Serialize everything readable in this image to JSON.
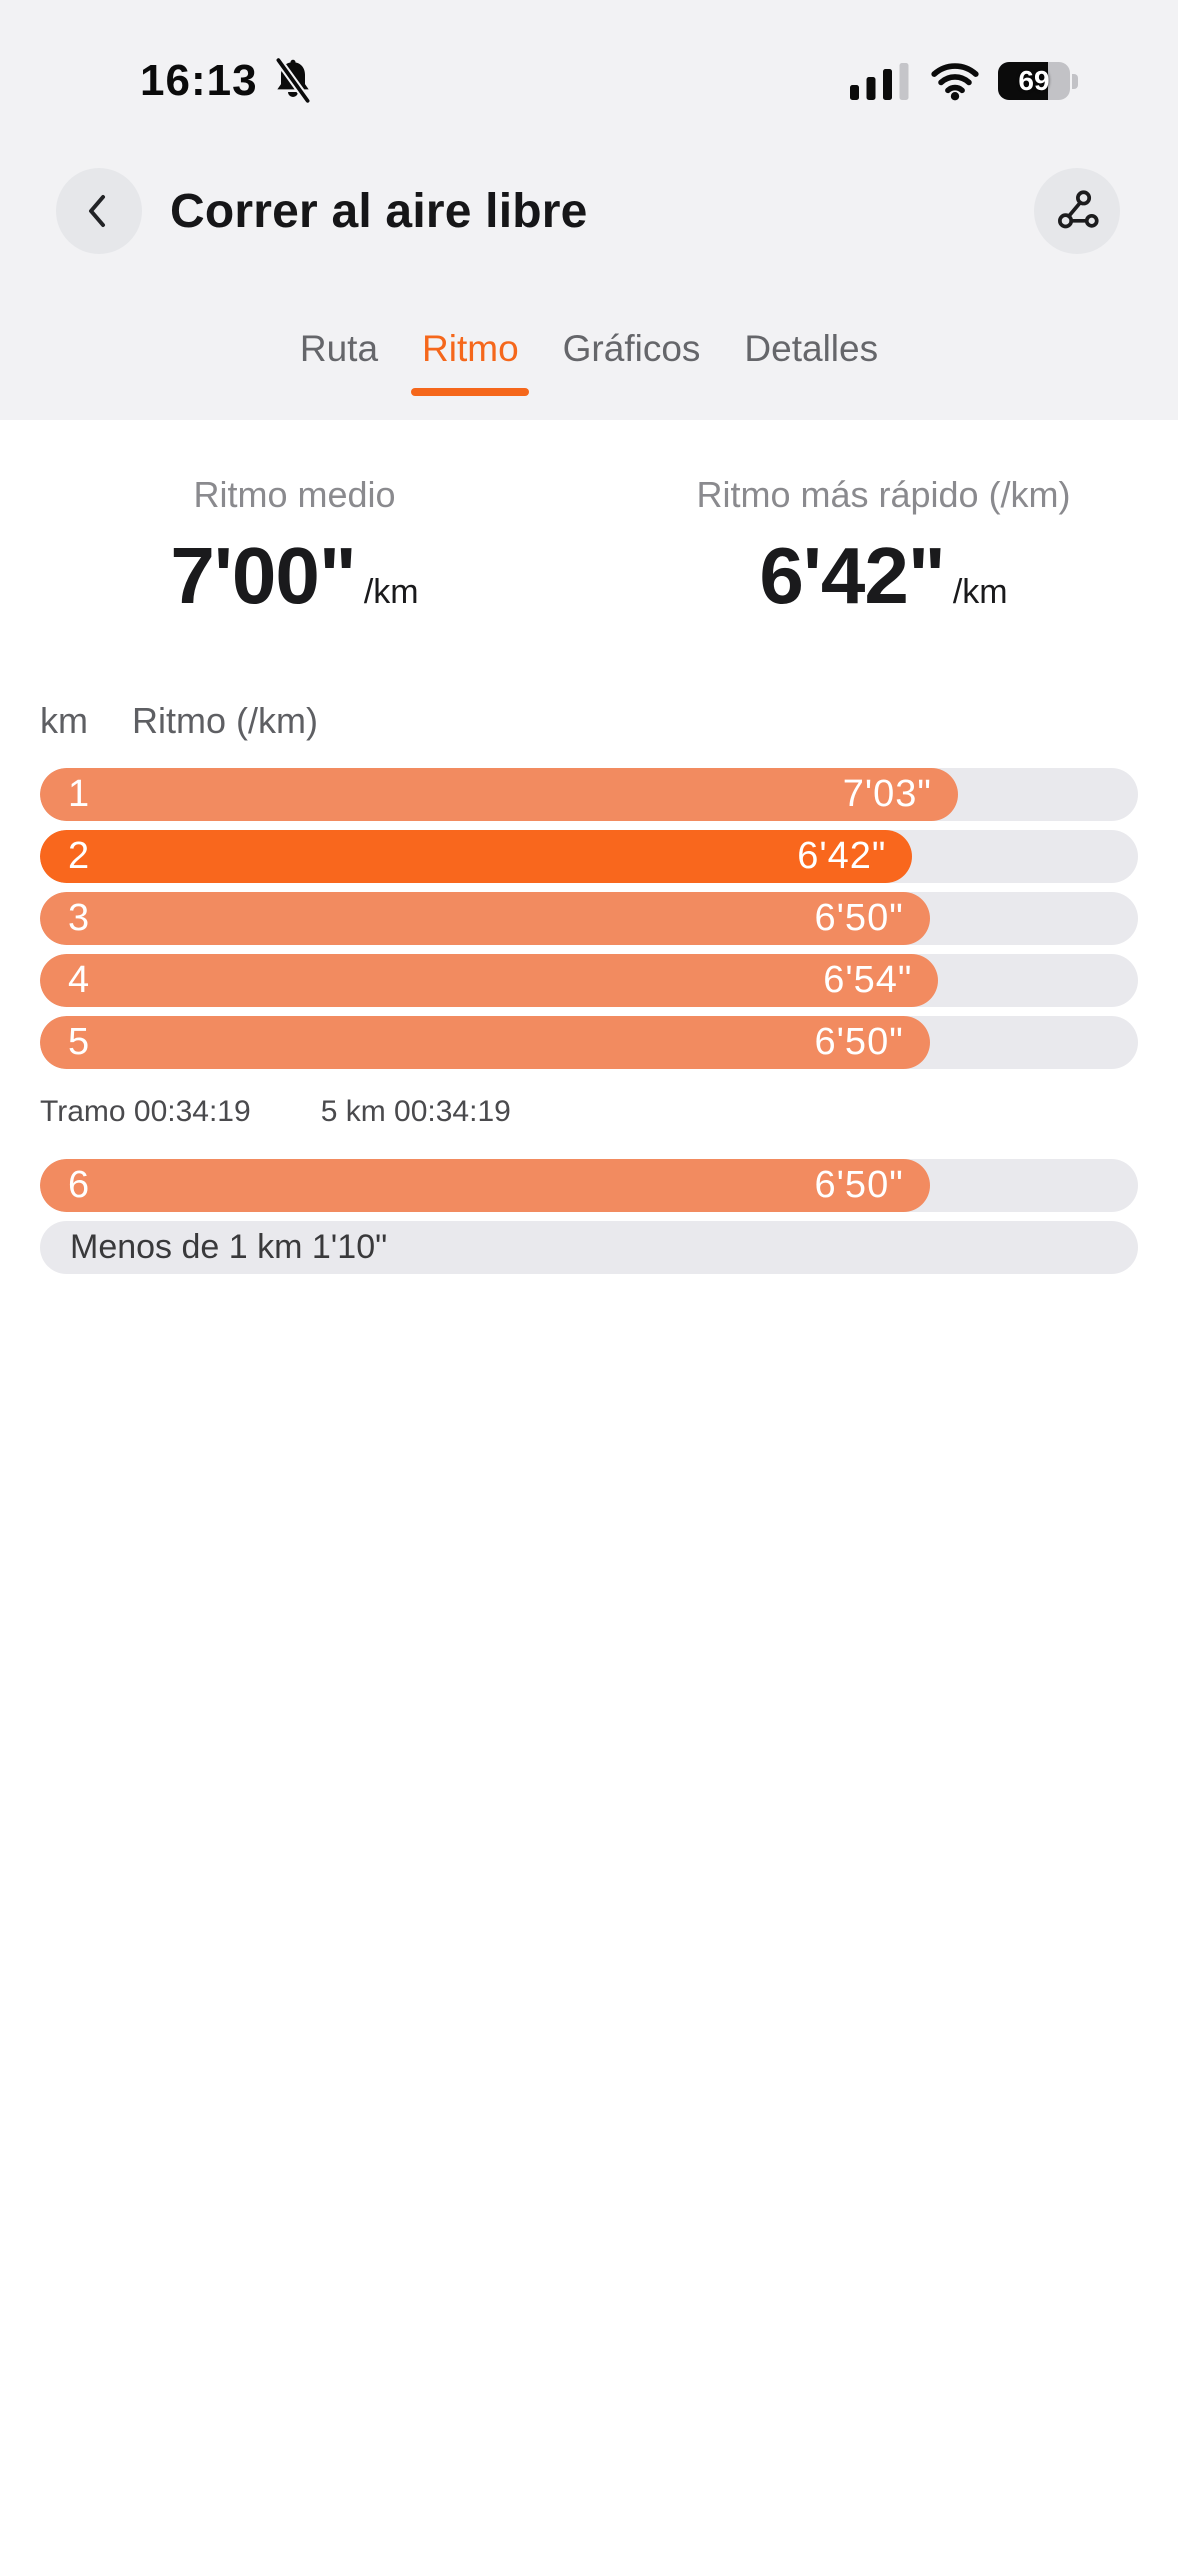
{
  "status_bar": {
    "time": "16:13",
    "battery_percent": "69"
  },
  "header": {
    "title": "Correr al aire libre"
  },
  "tabs": [
    {
      "label": "Ruta",
      "active": false
    },
    {
      "label": "Ritmo",
      "active": true
    },
    {
      "label": "Gráficos",
      "active": false
    },
    {
      "label": "Detalles",
      "active": false
    }
  ],
  "stats": [
    {
      "label": "Ritmo medio",
      "value": "7'00\"",
      "unit": "/km"
    },
    {
      "label": "Ritmo más rápido (/km)",
      "value": "6'42\"",
      "unit": "/km"
    }
  ],
  "chart_data": {
    "type": "bar",
    "orientation": "horizontal",
    "column_headers": {
      "km": "km",
      "pace": "Ritmo (/km)"
    },
    "axis": {
      "max_seconds": 423,
      "max_fill_pct": 83.6
    },
    "rows": [
      {
        "type": "bar",
        "km": "1",
        "pace": "7'03\"",
        "seconds": 423,
        "highlight": false
      },
      {
        "type": "bar",
        "km": "2",
        "pace": "6'42\"",
        "seconds": 402,
        "highlight": true
      },
      {
        "type": "bar",
        "km": "3",
        "pace": "6'50\"",
        "seconds": 410,
        "highlight": false
      },
      {
        "type": "bar",
        "km": "4",
        "pace": "6'54\"",
        "seconds": 414,
        "highlight": false
      },
      {
        "type": "bar",
        "km": "5",
        "pace": "6'50\"",
        "seconds": 410,
        "highlight": false
      },
      {
        "type": "split",
        "left": "Tramo 00:34:19",
        "right": "5 km 00:34:19"
      },
      {
        "type": "bar",
        "km": "6",
        "pace": "6'50\"",
        "seconds": 410,
        "highlight": false
      },
      {
        "type": "partial",
        "label": "Menos de 1 km 1'10\""
      }
    ]
  },
  "colors": {
    "accent": "#F5671B",
    "bar": "#F28B60",
    "bar_highlight": "#F9671D",
    "track": "#E9E9ED",
    "top_bg": "#F2F2F4",
    "circle_button": "#E6E7EA"
  }
}
